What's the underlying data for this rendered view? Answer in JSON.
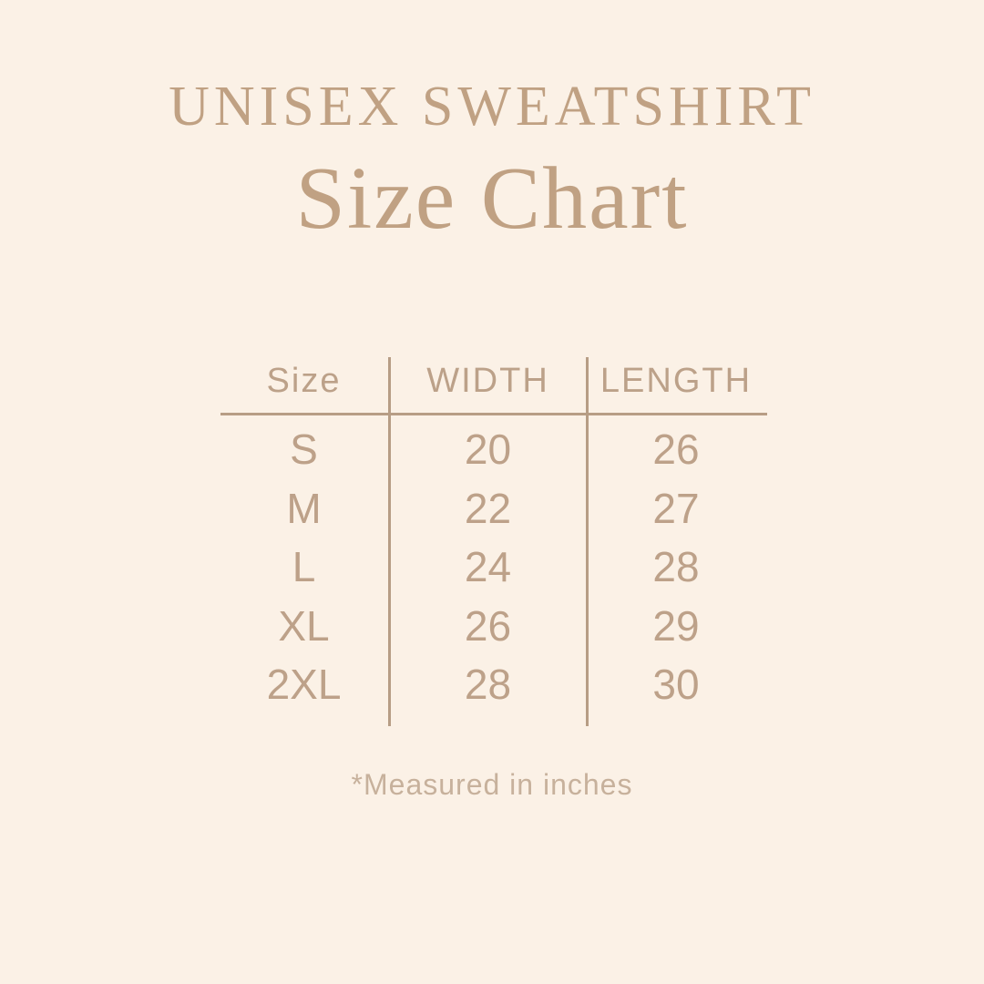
{
  "header": {
    "title": "UNISEX SWEATSHIRT",
    "subtitle": "Size Chart"
  },
  "table": {
    "columns": [
      "Size",
      "WIDTH",
      "LENGTH"
    ],
    "rows": [
      {
        "size": "S",
        "width": "20",
        "length": "26"
      },
      {
        "size": "M",
        "width": "22",
        "length": "27"
      },
      {
        "size": "L",
        "width": "24",
        "length": "28"
      },
      {
        "size": "XL",
        "width": "26",
        "length": "29"
      },
      {
        "size": "2XL",
        "width": "28",
        "length": "30"
      }
    ]
  },
  "footer": {
    "note": "*Measured in inches"
  },
  "colors": {
    "background": "#fbf1e6",
    "title_text": "#c0a183",
    "table_text": "#bda189",
    "rule_lines": "#b79d85",
    "footnote_text": "#c7b19c"
  },
  "chart_data": {
    "type": "table",
    "title": "UNISEX SWEATSHIRT Size Chart",
    "columns": [
      "Size",
      "WIDTH",
      "LENGTH"
    ],
    "units": "inches",
    "rows": [
      [
        "S",
        20,
        26
      ],
      [
        "M",
        22,
        27
      ],
      [
        "L",
        24,
        28
      ],
      [
        "XL",
        26,
        29
      ],
      [
        "2XL",
        28,
        30
      ]
    ],
    "note": "*Measured in inches"
  }
}
